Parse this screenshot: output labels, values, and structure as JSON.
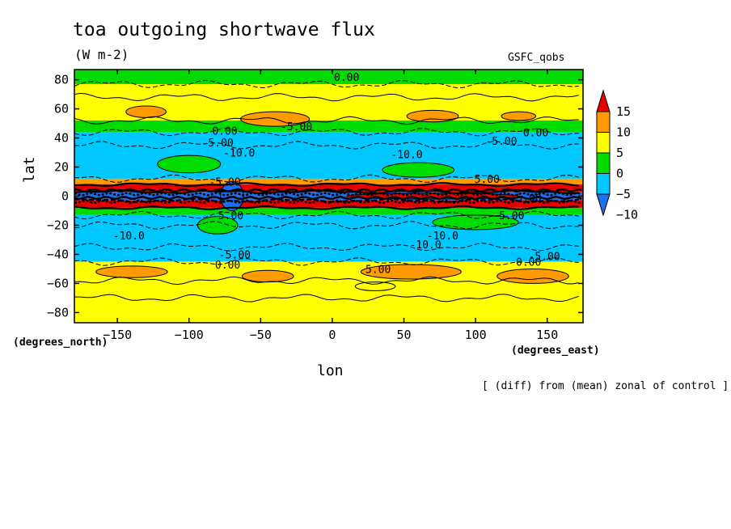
{
  "chart_data": {
    "type": "heatmap",
    "title": "toa outgoing shortwave flux",
    "units": "(W m-2)",
    "source": "GSFC_qobs",
    "xlabel": "lon",
    "ylabel": "lat",
    "xunits": "(degrees_east)",
    "yunits": "(degrees_north)",
    "note": "[ (diff) from (mean) zonal of control ]",
    "xlim": [
      -180,
      175
    ],
    "ylim": [
      -87,
      87
    ],
    "xticks": [
      -150,
      -100,
      -50,
      0,
      50,
      100,
      150
    ],
    "yticks": [
      -80,
      -60,
      -40,
      -20,
      0,
      20,
      40,
      60,
      80
    ],
    "colorbar": {
      "levels": [
        -10,
        -5,
        0,
        5,
        10,
        15
      ],
      "colors": [
        "#1e6ff0",
        "#00c8ff",
        "#00dc00",
        "#ffff00",
        "#ff9b00",
        "#e60000"
      ],
      "labels": [
        "-10",
        "-5",
        "0",
        "5",
        "10",
        "15"
      ]
    },
    "zonal_bands": [
      {
        "lat": [
          77,
          87
        ],
        "value": -3
      },
      {
        "lat": [
          68,
          77
        ],
        "value": 0
      },
      {
        "lat": [
          52,
          68
        ],
        "value": 3
      },
      {
        "lat": [
          44,
          52
        ],
        "value": -2
      },
      {
        "lat": [
          35,
          44
        ],
        "value": -6
      },
      {
        "lat": [
          12,
          35
        ],
        "value": -9
      },
      {
        "lat": [
          8,
          12
        ],
        "value": 8
      },
      {
        "lat": [
          3,
          8
        ],
        "value": 12
      },
      {
        "lat": [
          -3,
          3
        ],
        "value": -11
      },
      {
        "lat": [
          -8,
          -3
        ],
        "value": 12
      },
      {
        "lat": [
          -13,
          -8
        ],
        "value": -3
      },
      {
        "lat": [
          -20,
          -13
        ],
        "value": -6
      },
      {
        "lat": [
          -35,
          -20
        ],
        "value": -9
      },
      {
        "lat": [
          -45,
          -35
        ],
        "value": -6
      },
      {
        "lat": [
          -58,
          -45
        ],
        "value": 4
      },
      {
        "lat": [
          -70,
          -58
        ],
        "value": 1
      },
      {
        "lat": [
          -87,
          -70
        ],
        "value": 0
      }
    ],
    "contour_labels": [
      {
        "text": "0.00",
        "lon": 10,
        "lat": 82
      },
      {
        "text": "-5.00",
        "lon": -25,
        "lat": 48
      },
      {
        "text": "0.00",
        "lon": -75,
        "lat": 45
      },
      {
        "text": "-5.00",
        "lon": -80,
        "lat": 37
      },
      {
        "text": "-10.0",
        "lon": -65,
        "lat": 30
      },
      {
        "text": "0.00",
        "lon": 142,
        "lat": 44
      },
      {
        "text": "-5.00",
        "lon": 118,
        "lat": 38
      },
      {
        "text": "-10.0",
        "lon": 52,
        "lat": 29
      },
      {
        "text": "5.00",
        "lon": 108,
        "lat": 12
      },
      {
        "text": "-5.00",
        "lon": -75,
        "lat": 10
      },
      {
        "text": "-5.00",
        "lon": 135,
        "lat": -1
      },
      {
        "text": "-5.00",
        "lon": -73,
        "lat": -13
      },
      {
        "text": "-5.00",
        "lon": 123,
        "lat": -13
      },
      {
        "text": "-10.0",
        "lon": -142,
        "lat": -27
      },
      {
        "text": "-10.0",
        "lon": 65,
        "lat": -33
      },
      {
        "text": "-10.0",
        "lon": 77,
        "lat": -27
      },
      {
        "text": "-5.00",
        "lon": -68,
        "lat": -40
      },
      {
        "text": "0.00",
        "lon": -73,
        "lat": -47
      },
      {
        "text": "5.00",
        "lon": 32,
        "lat": -50
      },
      {
        "text": "0.00",
        "lon": 137,
        "lat": -45
      },
      {
        "text": "-5.00",
        "lon": 148,
        "lat": -41
      }
    ],
    "blobs": [
      {
        "lon": -130,
        "lat": 58,
        "rx": 14,
        "ry": 4,
        "value": 6
      },
      {
        "lon": -40,
        "lat": 53,
        "rx": 24,
        "ry": 5,
        "value": 7
      },
      {
        "lon": 70,
        "lat": 55,
        "rx": 18,
        "ry": 4,
        "value": 6
      },
      {
        "lon": 130,
        "lat": 55,
        "rx": 12,
        "ry": 3,
        "value": 6
      },
      {
        "lon": -100,
        "lat": 22,
        "rx": 22,
        "ry": 6,
        "value": -4
      },
      {
        "lon": 60,
        "lat": 18,
        "rx": 25,
        "ry": 5,
        "value": -4
      },
      {
        "lon": -80,
        "lat": -20,
        "rx": 14,
        "ry": 6,
        "value": -4
      },
      {
        "lon": 100,
        "lat": -18,
        "rx": 30,
        "ry": 5,
        "value": -4
      },
      {
        "lon": -140,
        "lat": -52,
        "rx": 25,
        "ry": 4,
        "value": 7
      },
      {
        "lon": -45,
        "lat": -55,
        "rx": 18,
        "ry": 4,
        "value": 6
      },
      {
        "lon": 55,
        "lat": -52,
        "rx": 35,
        "ry": 5,
        "value": 7
      },
      {
        "lon": 140,
        "lat": -55,
        "rx": 25,
        "ry": 5,
        "value": 7
      },
      {
        "lon": 30,
        "lat": -62,
        "rx": 14,
        "ry": 3,
        "value": 2
      },
      {
        "lon": 70,
        "lat": 0,
        "rx": 60,
        "ry": 2,
        "value": 16
      },
      {
        "lon": -70,
        "lat": 0,
        "rx": 8,
        "ry": 10,
        "value": -13
      }
    ]
  }
}
